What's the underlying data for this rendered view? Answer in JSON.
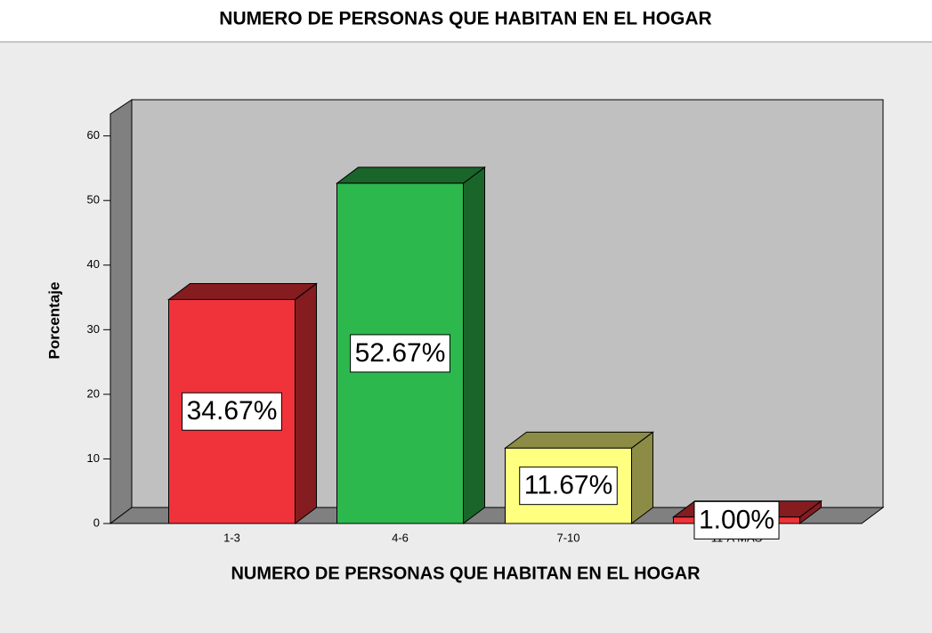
{
  "chart_data": {
    "type": "bar3d",
    "title": "NUMERO DE PERSONAS QUE HABITAN EN EL HOGAR",
    "xlabel": "NUMERO DE PERSONAS QUE HABITAN EN EL HOGAR",
    "ylabel": "Porcentaje",
    "categories": [
      "1-3",
      "4-6",
      "7-10",
      "11-A MAS"
    ],
    "values": [
      34.67,
      52.67,
      11.67,
      1.0
    ],
    "value_labels": [
      "34.67%",
      "52.67%",
      "11.67%",
      "1.00%"
    ],
    "colors": [
      "#f0333a",
      "#2db84d",
      "#ffff80",
      "#f0333a"
    ],
    "ylim": [
      0,
      63.4
    ],
    "yticks": [
      0,
      10,
      20,
      30,
      40,
      50,
      60
    ]
  }
}
